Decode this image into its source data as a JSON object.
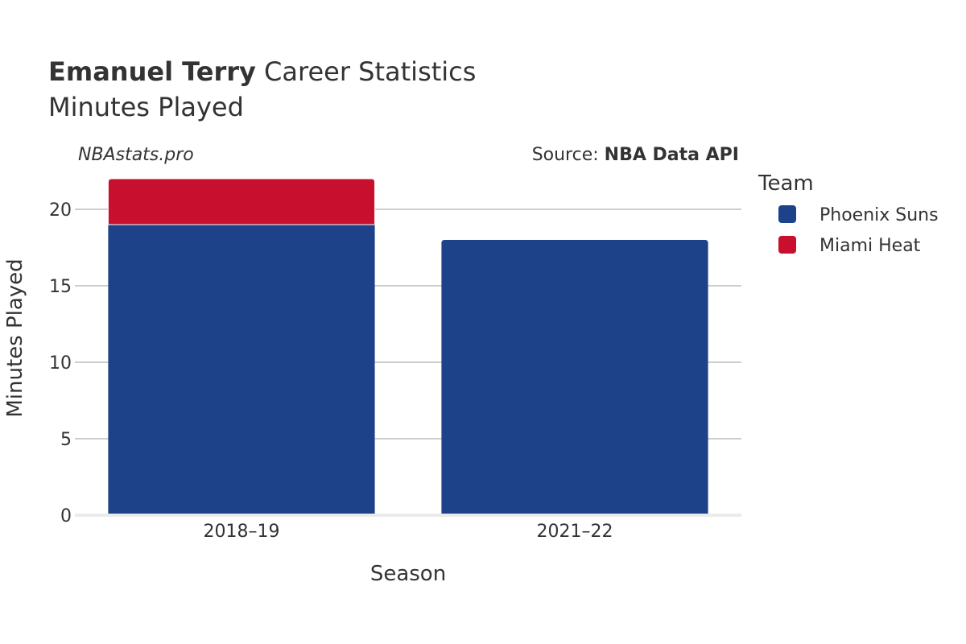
{
  "chart_data": {
    "type": "bar",
    "stacked": true,
    "title_bold": "Emanuel Terry",
    "title_rest": " Career Statistics",
    "subtitle": "Minutes Played",
    "watermark": "NBAstats.pro",
    "source_label": "Source: ",
    "source_name": "NBA Data API",
    "xlabel": "Season",
    "ylabel": "Minutes Played",
    "categories": [
      "2018–19",
      "2021–22"
    ],
    "ylim": [
      0,
      22
    ],
    "yticks": [
      0,
      5,
      10,
      15,
      20
    ],
    "grid": true,
    "legend_title": "Team",
    "legend_position": "top-right",
    "series": [
      {
        "name": "Phoenix Suns",
        "color": "#1d428a",
        "values": [
          19,
          18
        ]
      },
      {
        "name": "Miami Heat",
        "color": "#c8102e",
        "values": [
          3,
          0
        ]
      }
    ]
  }
}
